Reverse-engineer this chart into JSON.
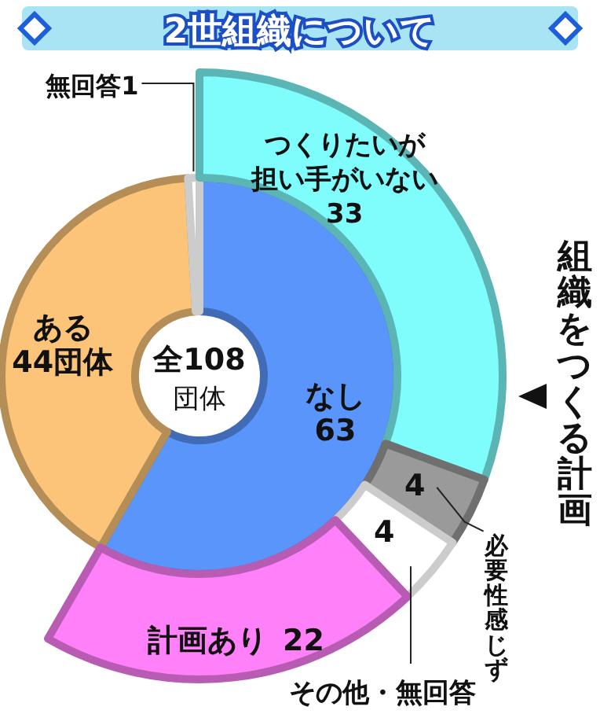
{
  "chart_data": [
    {
      "type": "donut",
      "title": "2世組織について",
      "categories": [
        "なし",
        "ある",
        "無回答"
      ],
      "values": [
        63,
        44,
        1
      ],
      "value_labels": [
        "63",
        "44団体",
        "1"
      ],
      "colors": [
        "#5a95fb",
        "#fbc479",
        "#ffffff"
      ],
      "annotations": [
        "全108団体"
      ]
    },
    {
      "type": "donut",
      "categories": [
        "つくりたいが担い手がいない",
        "必要性感じず",
        "その他・無回答",
        "計画あり"
      ],
      "values": [
        33,
        4,
        4,
        22
      ],
      "data_labels": true,
      "colors": [
        "#7ffcfc",
        "#9a9a9a",
        "#ffffff",
        "#ff80f8"
      ],
      "annotations": [
        "組織をつくる計画"
      ]
    }
  ]
}
